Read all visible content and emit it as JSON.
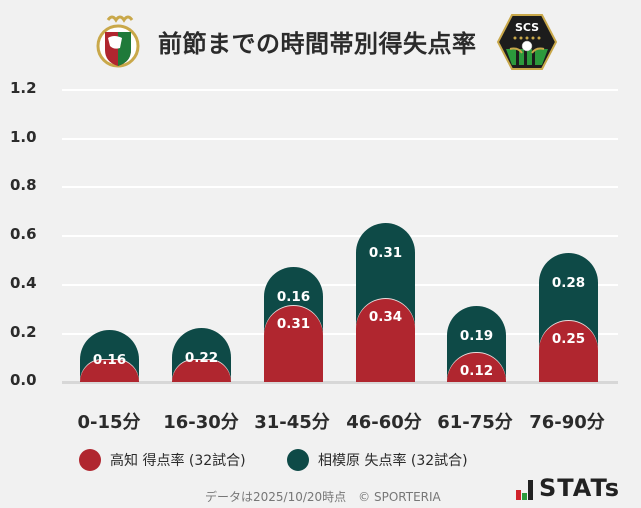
{
  "header": {
    "title": "前節までの時間帯別得失点率",
    "home_logo_icon": "kochi-united-crest-icon",
    "away_logo_icon": "sc-sagamihara-crest-icon"
  },
  "colors": {
    "home": "#b0262f",
    "away": "#0e4a47",
    "background": "#f1f1f1"
  },
  "chart_data": {
    "type": "bar",
    "stacked": true,
    "title": "前節までの時間帯別得失点率",
    "xlabel": "",
    "ylabel": "",
    "ylim": [
      0,
      1.2
    ],
    "yticks": [
      "0.0",
      "0.2",
      "0.4",
      "0.6",
      "0.8",
      "1.0",
      "1.2"
    ],
    "grid": true,
    "legend_position": "bottom",
    "categories": [
      "0-15分",
      "16-30分",
      "31-45分",
      "46-60分",
      "61-75分",
      "76-90分"
    ],
    "series": [
      {
        "name": "高知 得点率 (32試合)",
        "color": "#b0262f",
        "values": [
          0.0,
          0.0,
          0.31,
          0.34,
          0.12,
          0.25
        ],
        "labels": [
          "",
          "",
          "0.31",
          "0.34",
          "0.12",
          "0.25"
        ]
      },
      {
        "name": "相模原 失点率 (32試合)",
        "color": "#0e4a47",
        "values": [
          0.16,
          0.22,
          0.16,
          0.31,
          0.19,
          0.28
        ],
        "labels": [
          "0.16",
          "0.22",
          "0.16",
          "0.31",
          "0.19",
          "0.28"
        ]
      }
    ]
  },
  "legend": [
    {
      "label": "高知 得点率 (32試合)",
      "color": "#b0262f"
    },
    {
      "label": "相模原 失点率 (32試合)",
      "color": "#0e4a47"
    }
  ],
  "footer": {
    "note": "データは2025/10/20時点　© SPORTERIA",
    "brand": "STATs",
    "brand_icon": "bar-chart-icon"
  }
}
